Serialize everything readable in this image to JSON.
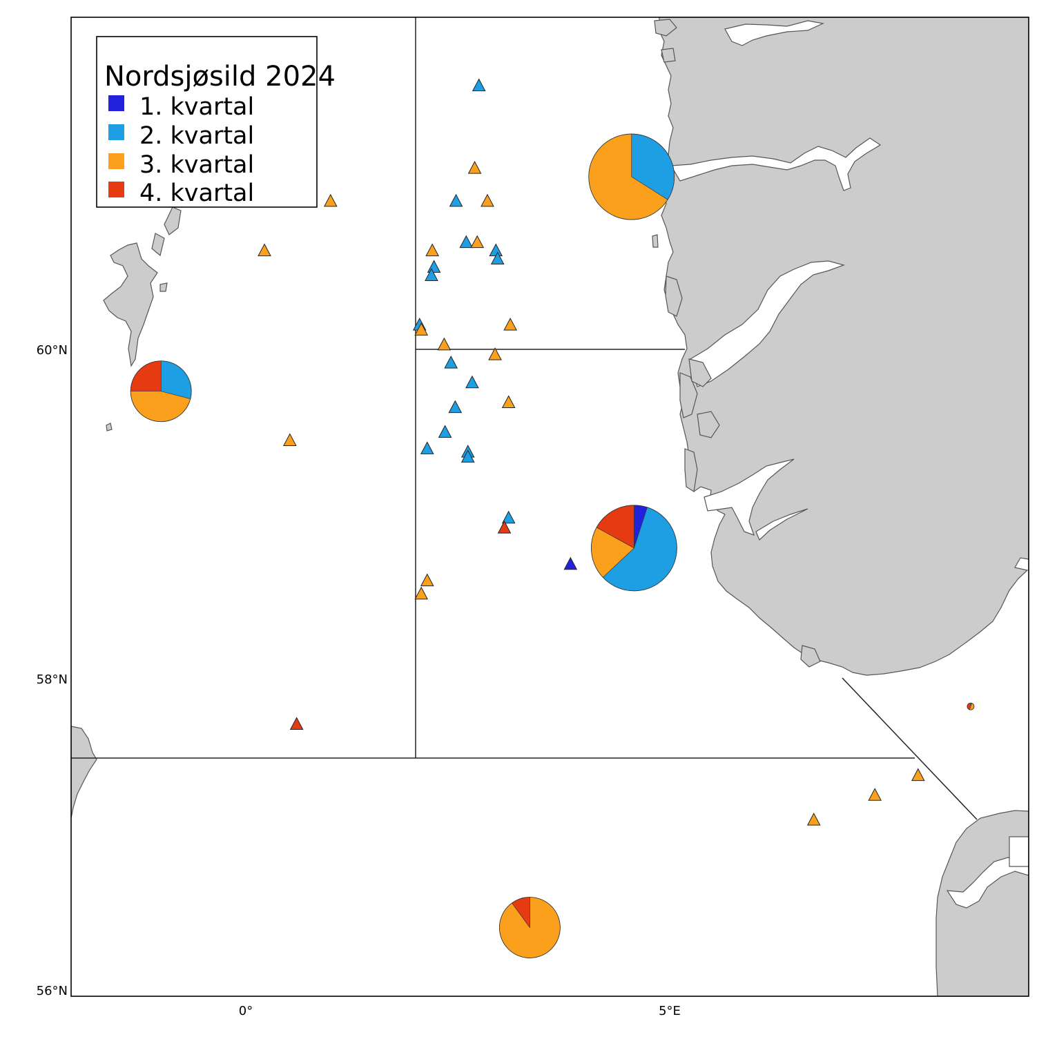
{
  "legend": {
    "title": "Nordsjøsild 2024",
    "items": [
      {
        "label": "1. kvartal",
        "color": "#2222dd"
      },
      {
        "label": "2. kvartal",
        "color": "#1e9fe3"
      },
      {
        "label": "3. kvartal",
        "color": "#fba01d"
      },
      {
        "label": "4. kvartal",
        "color": "#e53a12"
      }
    ]
  },
  "axes": {
    "x_ticks": [
      "0°",
      "5°E"
    ],
    "y_ticks": [
      "60°N",
      "58°N",
      "56°N"
    ]
  },
  "colors": {
    "land": "#cccccc",
    "land_outline": "#555555",
    "q1": "#2222dd",
    "q2": "#1e9fe3",
    "q3": "#fba01d",
    "q4": "#e53a12"
  },
  "chart_data": {
    "type": "map",
    "stations": [
      {
        "lon": 2.75,
        "lat": 61.6,
        "quarter": 2
      },
      {
        "lon": 2.7,
        "lat": 61.1,
        "quarter": 3
      },
      {
        "lon": 2.85,
        "lat": 60.9,
        "quarter": 3
      },
      {
        "lon": 2.48,
        "lat": 60.9,
        "quarter": 2
      },
      {
        "lon": 2.6,
        "lat": 60.65,
        "quarter": 2
      },
      {
        "lon": 2.73,
        "lat": 60.65,
        "quarter": 3
      },
      {
        "lon": 2.2,
        "lat": 60.6,
        "quarter": 3
      },
      {
        "lon": 2.95,
        "lat": 60.6,
        "quarter": 2
      },
      {
        "lon": 2.97,
        "lat": 60.55,
        "quarter": 2
      },
      {
        "lon": 2.22,
        "lat": 60.5,
        "quarter": 2
      },
      {
        "lon": 2.19,
        "lat": 60.45,
        "quarter": 2
      },
      {
        "lon": 2.05,
        "lat": 60.15,
        "quarter": 2
      },
      {
        "lon": 2.07,
        "lat": 60.12,
        "quarter": 3
      },
      {
        "lon": 3.12,
        "lat": 60.15,
        "quarter": 3
      },
      {
        "lon": 2.34,
        "lat": 60.03,
        "quarter": 3
      },
      {
        "lon": 2.94,
        "lat": 59.97,
        "quarter": 3
      },
      {
        "lon": 2.42,
        "lat": 59.92,
        "quarter": 2
      },
      {
        "lon": 2.67,
        "lat": 59.8,
        "quarter": 2
      },
      {
        "lon": 3.1,
        "lat": 59.68,
        "quarter": 3
      },
      {
        "lon": 2.47,
        "lat": 59.65,
        "quarter": 2
      },
      {
        "lon": 2.35,
        "lat": 59.5,
        "quarter": 2
      },
      {
        "lon": 2.14,
        "lat": 59.4,
        "quarter": 2
      },
      {
        "lon": 2.62,
        "lat": 59.38,
        "quarter": 2
      },
      {
        "lon": 2.62,
        "lat": 59.35,
        "quarter": 2
      },
      {
        "lon": 3.1,
        "lat": 58.98,
        "quarter": 2
      },
      {
        "lon": 3.05,
        "lat": 58.92,
        "quarter": 4
      },
      {
        "lon": 3.83,
        "lat": 58.7,
        "quarter": 1
      },
      {
        "lon": 2.14,
        "lat": 58.6,
        "quarter": 3
      },
      {
        "lon": 2.07,
        "lat": 58.52,
        "quarter": 3
      },
      {
        "lon": 1.0,
        "lat": 60.9,
        "quarter": 3
      },
      {
        "lon": 0.22,
        "lat": 60.6,
        "quarter": 3
      },
      {
        "lon": 0.52,
        "lat": 59.45,
        "quarter": 3
      },
      {
        "lon": 0.6,
        "lat": 57.73,
        "quarter": 4
      },
      {
        "lon": 7.93,
        "lat": 57.42,
        "quarter": 3
      },
      {
        "lon": 7.42,
        "lat": 57.3,
        "quarter": 3
      },
      {
        "lon": 6.7,
        "lat": 57.15,
        "quarter": 3
      }
    ],
    "pies": [
      {
        "lon": 4.55,
        "lat": 61.05,
        "r": "L",
        "shares": [
          0,
          0.34,
          0.66,
          0
        ]
      },
      {
        "lon": -1.0,
        "lat": 59.75,
        "r": "M",
        "shares": [
          0,
          0.29,
          0.46,
          0.25
        ]
      },
      {
        "lon": 4.58,
        "lat": 58.8,
        "r": "L",
        "shares": [
          0.05,
          0.58,
          0.2,
          0.17
        ]
      },
      {
        "lon": 3.35,
        "lat": 56.5,
        "r": "M",
        "shares": [
          0,
          0,
          0.9,
          0.1
        ]
      },
      {
        "lon": 8.55,
        "lat": 57.84,
        "r": "S",
        "shares": [
          0,
          0.05,
          0.5,
          0.45
        ]
      }
    ]
  }
}
